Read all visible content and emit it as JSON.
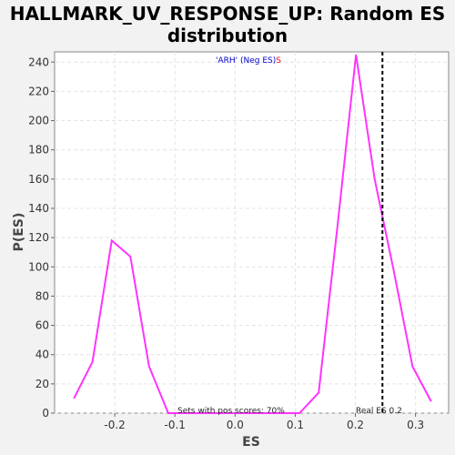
{
  "chart_data": {
    "type": "line",
    "title": "HALLMARK_UV_RESPONSE_UP: Random ES distribution",
    "title_lines": [
      "HALLMARK_UV_RESPONSE_UP: Random ES",
      "distribution"
    ],
    "xlabel": "ES",
    "ylabel": "P(ES)",
    "xlim": [
      -0.3,
      0.355
    ],
    "ylim": [
      0,
      247
    ],
    "xticks": [
      -0.2,
      -0.1,
      0.0,
      0.1,
      0.2,
      0.3
    ],
    "xtick_labels": [
      "-0.2",
      "-0.1",
      "0.0",
      "0.1",
      "0.2",
      "0.3"
    ],
    "yticks": [
      0,
      20,
      40,
      60,
      80,
      100,
      120,
      140,
      160,
      180,
      200,
      220,
      240
    ],
    "ytick_labels": [
      "0",
      "20",
      "40",
      "60",
      "80",
      "100",
      "120",
      "140",
      "160",
      "180",
      "200",
      "220",
      "240"
    ],
    "grid": true,
    "series": [
      {
        "color": "#ff33ff",
        "x": [
          -0.268,
          -0.237,
          -0.205,
          -0.174,
          -0.143,
          -0.111,
          -0.08,
          -0.049,
          -0.018,
          0.014,
          0.045,
          0.076,
          0.107,
          0.139,
          0.17,
          0.201,
          0.232,
          0.264,
          0.295,
          0.326
        ],
        "y": [
          10,
          35,
          118,
          107,
          32,
          0,
          0,
          0,
          0,
          0,
          0,
          0,
          0,
          14,
          127,
          245,
          160,
          97,
          32,
          8
        ]
      }
    ],
    "vline": {
      "x": 0.245,
      "style": "dashed",
      "color": "#000000"
    },
    "annotations": {
      "legend_blue": "'ARH' (Neg ES)",
      "legend_red": "S",
      "pos_scores": "Sets with pos scores: 70%",
      "real_es": "Real ES 0.2"
    },
    "colors": {
      "background": "#f2f2f2",
      "plot_background": "#ffffff",
      "legend_blue": "#0000cc",
      "legend_red": "#ff0000"
    }
  }
}
